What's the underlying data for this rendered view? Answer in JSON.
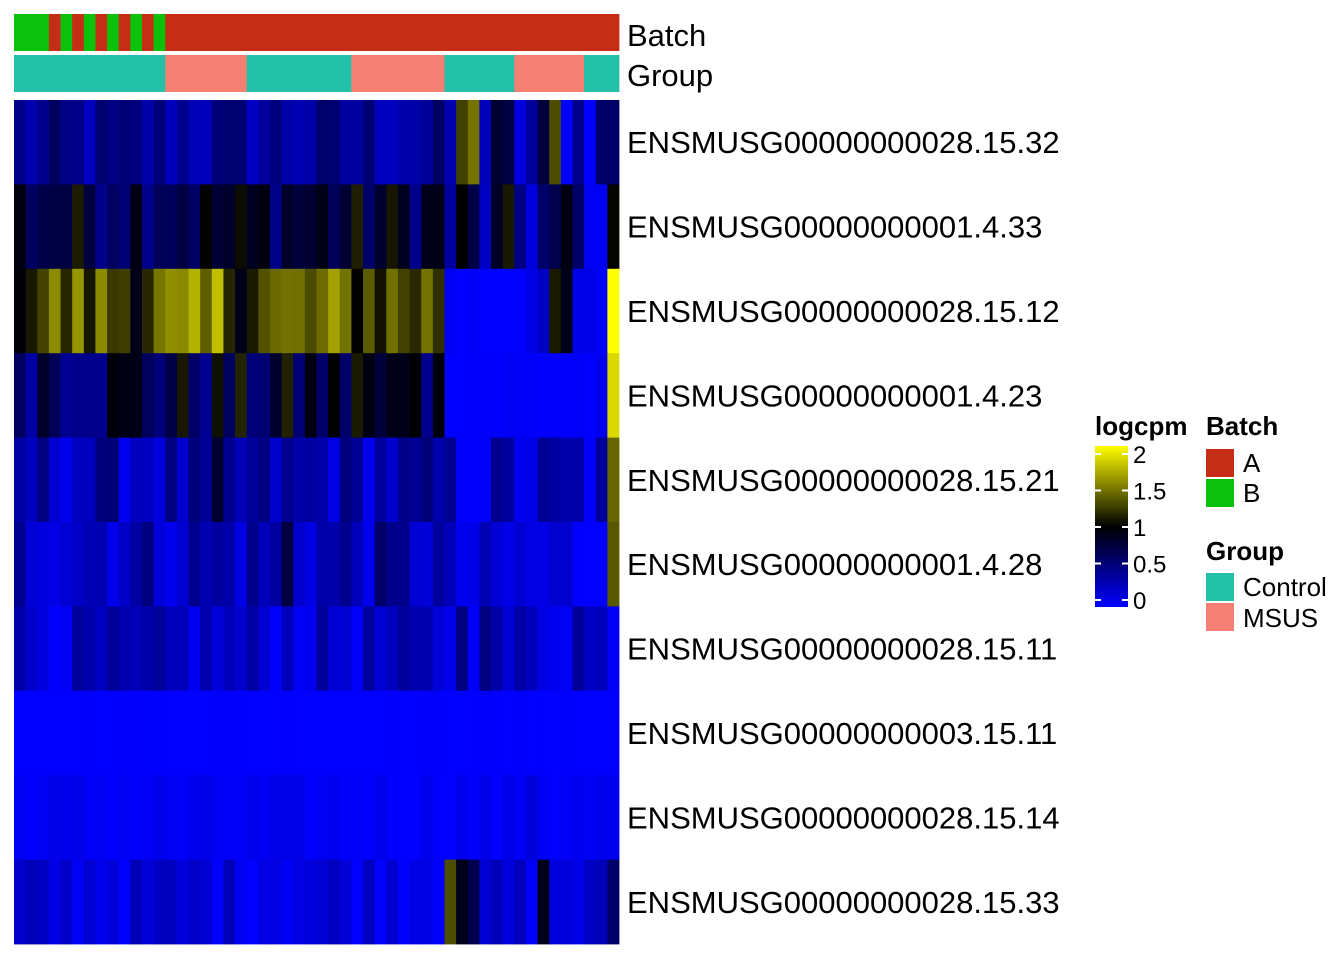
{
  "chart_data": {
    "type": "heatmap",
    "columns_count": 52,
    "annotations": {
      "batch": {
        "label": "Batch",
        "runs": [
          {
            "level": "B",
            "count": 3
          },
          {
            "level": "A",
            "count": 1
          },
          {
            "level": "B",
            "count": 1
          },
          {
            "level": "A",
            "count": 1
          },
          {
            "level": "B",
            "count": 1
          },
          {
            "level": "A",
            "count": 1
          },
          {
            "level": "B",
            "count": 1
          },
          {
            "level": "A",
            "count": 1
          },
          {
            "level": "B",
            "count": 1
          },
          {
            "level": "A",
            "count": 1
          },
          {
            "level": "B",
            "count": 1
          },
          {
            "level": "A",
            "count": 39
          }
        ]
      },
      "group": {
        "label": "Group",
        "runs": [
          {
            "level": "Control",
            "count": 13
          },
          {
            "level": "MSUS",
            "count": 7
          },
          {
            "level": "Control",
            "count": 9
          },
          {
            "level": "MSUS",
            "count": 8
          },
          {
            "level": "Control",
            "count": 6
          },
          {
            "level": "MSUS",
            "count": 6
          },
          {
            "level": "Control",
            "count": 3
          }
        ]
      }
    },
    "rows": [
      {
        "gene": "ENSMUSG00000000028.15.32",
        "base": 0.4,
        "spread": 0.22,
        "seg": [
          {
            "a": 37,
            "b": 52,
            "base": 0.35,
            "spread": 0.6
          }
        ],
        "cols": [
          {
            "i": 38,
            "v": 1.25
          },
          {
            "i": 39,
            "v": 1.45
          },
          {
            "i": 46,
            "v": 1.3
          },
          {
            "i": 51,
            "v": 0.6
          }
        ]
      },
      {
        "gene": "ENSMUSG00000000001.4.33",
        "base": 0.8,
        "spread": 0.35,
        "seg": [
          {
            "a": 37,
            "b": 52,
            "base": 0.5,
            "spread": 0.6
          }
        ],
        "cols": [
          {
            "i": 38,
            "v": 1.0
          },
          {
            "i": 49,
            "v": 0.05
          },
          {
            "i": 50,
            "v": 0.05
          }
        ]
      },
      {
        "gene": "ENSMUSG00000000028.15.12",
        "base": 1.3,
        "spread": 0.4,
        "seg": [
          {
            "a": 37,
            "b": 52,
            "base": 0.1,
            "spread": 0.2
          }
        ],
        "cols": [
          {
            "i": 17,
            "v": 1.75
          },
          {
            "i": 41,
            "v": 0.0
          },
          {
            "i": 42,
            "v": 0.0
          },
          {
            "i": 43,
            "v": 0.0
          },
          {
            "i": 46,
            "v": 1.1
          },
          {
            "i": 47,
            "v": 0.9
          },
          {
            "i": 51,
            "v": 2.0
          }
        ]
      },
      {
        "gene": "ENSMUSG00000000001.4.23",
        "base": 0.75,
        "spread": 0.4,
        "seg": [
          {
            "a": 37,
            "b": 52,
            "base": 0.02,
            "spread": 0.05
          }
        ],
        "cols": [
          {
            "i": 29,
            "v": 1.1
          },
          {
            "i": 34,
            "v": 1.0
          },
          {
            "i": 51,
            "v": 1.85
          }
        ]
      },
      {
        "gene": "ENSMUSG00000000028.15.21",
        "base": 0.3,
        "spread": 0.25,
        "seg": [
          {
            "a": 37,
            "b": 52,
            "base": 0.2,
            "spread": 0.3
          }
        ],
        "cols": [
          {
            "i": 17,
            "v": 0.8
          },
          {
            "i": 51,
            "v": 1.4
          }
        ]
      },
      {
        "gene": "ENSMUSG00000000001.4.28",
        "base": 0.3,
        "spread": 0.25,
        "seg": [
          {
            "a": 37,
            "b": 52,
            "base": 0.1,
            "spread": 0.2
          }
        ],
        "cols": [
          {
            "i": 23,
            "v": 0.75
          },
          {
            "i": 31,
            "v": 0.6
          },
          {
            "i": 51,
            "v": 1.35
          }
        ]
      },
      {
        "gene": "ENSMUSG00000000028.15.11",
        "base": 0.2,
        "spread": 0.2,
        "seg": [],
        "cols": [
          {
            "i": 38,
            "v": 0.5
          },
          {
            "i": 40,
            "v": 0.5
          },
          {
            "i": 48,
            "v": 0.4
          }
        ]
      },
      {
        "gene": "ENSMUSG00000000003.15.11",
        "base": 0.0,
        "spread": 0.02,
        "seg": [],
        "cols": []
      },
      {
        "gene": "ENSMUSG00000000028.15.14",
        "base": 0.04,
        "spread": 0.06,
        "seg": [],
        "cols": [
          {
            "i": 44,
            "v": 0.15
          }
        ]
      },
      {
        "gene": "ENSMUSG00000000028.15.33",
        "base": 0.15,
        "spread": 0.15,
        "seg": [],
        "cols": [
          {
            "i": 37,
            "v": 1.3
          },
          {
            "i": 38,
            "v": 0.9
          },
          {
            "i": 39,
            "v": 0.7
          },
          {
            "i": 45,
            "v": 0.9
          },
          {
            "i": 51,
            "v": 0.6
          }
        ]
      }
    ],
    "color_scale": {
      "title": "logcpm",
      "min": 0,
      "max": 2,
      "breaks": [
        "2",
        "1.5",
        "1",
        "0.5",
        "0"
      ],
      "break_values": [
        2,
        1.5,
        1,
        0.5,
        0
      ],
      "colors": [
        "#0000ff",
        "#000000",
        "#ffff00"
      ]
    },
    "legend": {
      "placement": "right",
      "batch_title": "Batch",
      "batch_levels": [
        {
          "label": "A",
          "color": "#c62d17"
        },
        {
          "label": "B",
          "color": "#0cc10c"
        }
      ],
      "group_title": "Group",
      "group_levels": [
        {
          "label": "Control",
          "color": "#24c1a9"
        },
        {
          "label": "MSUS",
          "color": "#f67f74"
        }
      ]
    }
  }
}
